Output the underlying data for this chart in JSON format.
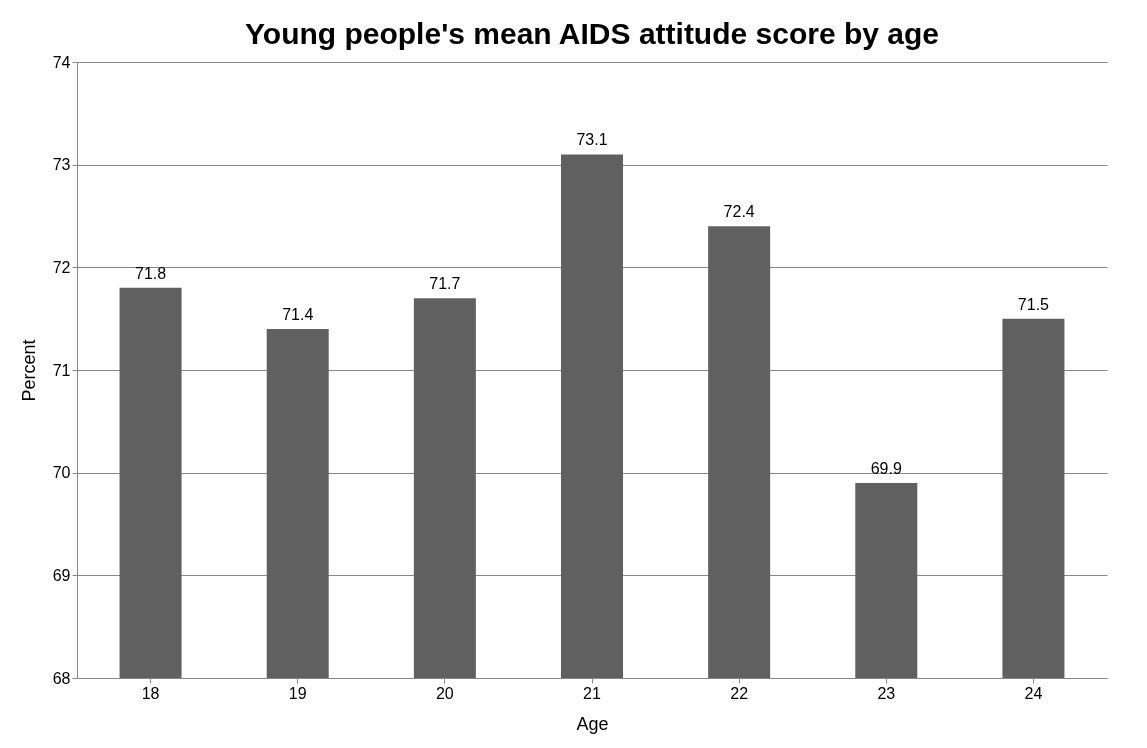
{
  "chart_data": {
    "type": "bar",
    "title": "Young people's mean AIDS attitude score by age",
    "xlabel": "Age",
    "ylabel": "Percent",
    "categories": [
      "18",
      "19",
      "20",
      "21",
      "22",
      "23",
      "24"
    ],
    "values": [
      71.8,
      71.4,
      71.7,
      73.1,
      72.4,
      69.9,
      71.5
    ],
    "color": "#606060",
    "ylim": [
      68,
      74
    ],
    "yticks": [
      68,
      69,
      70,
      71,
      72,
      73,
      74
    ],
    "grid": "y",
    "data_labels": true
  }
}
